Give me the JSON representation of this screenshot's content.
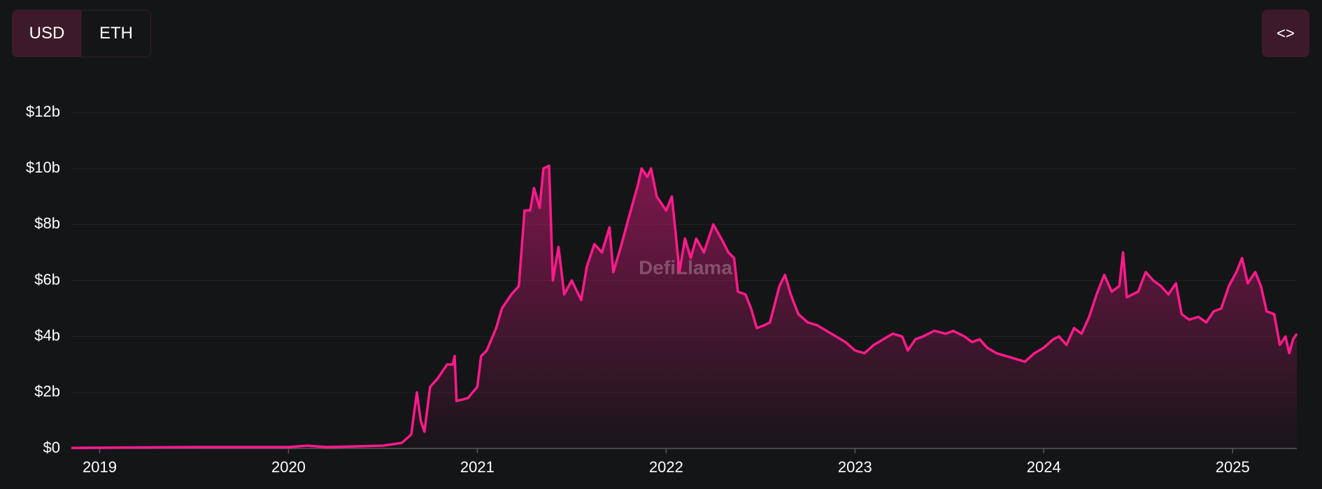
{
  "toggle": {
    "options": [
      "USD",
      "ETH"
    ],
    "selected": "USD"
  },
  "embed_button": "<>",
  "chart_data": {
    "type": "area",
    "watermark": "DefiLlama",
    "color": "#ff1a8c",
    "grid": true,
    "xlim": [
      2018.85,
      2025.34
    ],
    "xticks": [
      2019,
      2020,
      2021,
      2022,
      2023,
      2024,
      2025
    ],
    "ylim": [
      0,
      12
    ],
    "yticks": [
      {
        "value": 0,
        "label": "$0"
      },
      {
        "value": 2,
        "label": "$2b"
      },
      {
        "value": 4,
        "label": "$4b"
      },
      {
        "value": 6,
        "label": "$6b"
      },
      {
        "value": 8,
        "label": "$8b"
      },
      {
        "value": 10,
        "label": "$10b"
      },
      {
        "value": 12,
        "label": "$12b"
      }
    ],
    "x": [
      2018.85,
      2019.5,
      2020.0,
      2020.1,
      2020.2,
      2020.5,
      2020.6,
      2020.65,
      2020.68,
      2020.7,
      2020.72,
      2020.75,
      2020.79,
      2020.84,
      2020.87,
      2020.88,
      2020.89,
      2020.95,
      2021.0,
      2021.02,
      2021.05,
      2021.1,
      2021.13,
      2021.18,
      2021.22,
      2021.25,
      2021.28,
      2021.3,
      2021.33,
      2021.35,
      2021.38,
      2021.4,
      2021.43,
      2021.46,
      2021.5,
      2021.55,
      2021.58,
      2021.62,
      2021.66,
      2021.7,
      2021.72,
      2021.76,
      2021.8,
      2021.85,
      2021.87,
      2021.9,
      2021.92,
      2021.95,
      2022.0,
      2022.03,
      2022.05,
      2022.07,
      2022.1,
      2022.13,
      2022.16,
      2022.2,
      2022.25,
      2022.3,
      2022.33,
      2022.36,
      2022.38,
      2022.42,
      2022.45,
      2022.48,
      2022.52,
      2022.55,
      2022.6,
      2022.63,
      2022.66,
      2022.7,
      2022.75,
      2022.8,
      2022.85,
      2022.9,
      2022.95,
      2023.0,
      2023.05,
      2023.1,
      2023.15,
      2023.2,
      2023.25,
      2023.28,
      2023.32,
      2023.36,
      2023.42,
      2023.48,
      2023.52,
      2023.58,
      2023.62,
      2023.66,
      2023.7,
      2023.75,
      2023.8,
      2023.85,
      2023.9,
      2023.95,
      2024.0,
      2024.05,
      2024.08,
      2024.12,
      2024.16,
      2024.2,
      2024.24,
      2024.28,
      2024.32,
      2024.36,
      2024.4,
      2024.42,
      2024.44,
      2024.5,
      2024.54,
      2024.58,
      2024.62,
      2024.66,
      2024.7,
      2024.73,
      2024.77,
      2024.82,
      2024.86,
      2024.9,
      2024.94,
      2024.98,
      2025.02,
      2025.05,
      2025.08,
      2025.12,
      2025.15,
      2025.18,
      2025.22,
      2025.25,
      2025.28,
      2025.3,
      2025.32,
      2025.34
    ],
    "values": [
      0.02,
      0.05,
      0.05,
      0.1,
      0.05,
      0.1,
      0.2,
      0.5,
      2.0,
      1.0,
      0.6,
      2.2,
      2.5,
      3.0,
      3.0,
      3.3,
      1.7,
      1.8,
      2.2,
      3.3,
      3.5,
      4.3,
      5.0,
      5.5,
      5.8,
      8.5,
      8.5,
      9.3,
      8.6,
      10.0,
      10.1,
      6.0,
      7.2,
      5.5,
      6.0,
      5.3,
      6.5,
      7.3,
      7.0,
      7.9,
      6.3,
      7.2,
      8.2,
      9.4,
      10.0,
      9.7,
      10.0,
      9.0,
      8.5,
      9.0,
      7.7,
      6.3,
      7.5,
      6.8,
      7.5,
      7.0,
      8.0,
      7.4,
      7.0,
      6.8,
      5.6,
      5.5,
      5.0,
      4.3,
      4.4,
      4.5,
      5.8,
      6.2,
      5.5,
      4.8,
      4.5,
      4.4,
      4.2,
      4.0,
      3.8,
      3.5,
      3.4,
      3.7,
      3.9,
      4.1,
      4.0,
      3.5,
      3.9,
      4.0,
      4.2,
      4.1,
      4.2,
      4.0,
      3.8,
      3.9,
      3.6,
      3.4,
      3.3,
      3.2,
      3.1,
      3.4,
      3.6,
      3.9,
      4.0,
      3.7,
      4.3,
      4.1,
      4.7,
      5.5,
      6.2,
      5.6,
      5.8,
      7.0,
      5.4,
      5.6,
      6.3,
      6.0,
      5.8,
      5.5,
      5.9,
      4.8,
      4.6,
      4.7,
      4.5,
      4.9,
      5.0,
      5.8,
      6.3,
      6.8,
      5.9,
      6.3,
      5.8,
      4.9,
      4.8,
      3.7,
      4.0,
      3.4,
      3.9,
      4.1
    ]
  }
}
